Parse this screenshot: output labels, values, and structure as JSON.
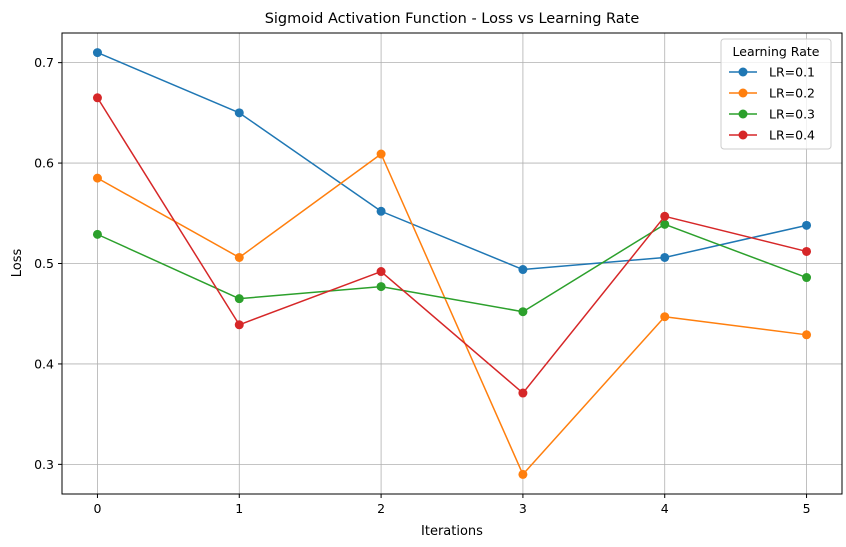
{
  "chart_data": {
    "type": "line",
    "title": "Sigmoid Activation Function - Loss vs Learning Rate",
    "xlabel": "Iterations",
    "ylabel": "Loss",
    "x": [
      0,
      1,
      2,
      3,
      4,
      5
    ],
    "x_ticks": [
      "0",
      "1",
      "2",
      "3",
      "4",
      "5"
    ],
    "y_ticks": [
      "0.3",
      "0.4",
      "0.5",
      "0.6",
      "0.7"
    ],
    "xlim": [
      -0.25,
      5.25
    ],
    "ylim": [
      0.2705,
      0.7295
    ],
    "grid": true,
    "legend": {
      "title": "Learning Rate",
      "placement": "top-right"
    },
    "series": [
      {
        "name": "LR=0.1",
        "color": "#1f77b4",
        "values": [
          0.71,
          0.65,
          0.552,
          0.494,
          0.506,
          0.538
        ]
      },
      {
        "name": "LR=0.2",
        "color": "#ff7f0e",
        "values": [
          0.585,
          0.506,
          0.609,
          0.29,
          0.447,
          0.429
        ]
      },
      {
        "name": "LR=0.3",
        "color": "#2ca02c",
        "values": [
          0.529,
          0.465,
          0.477,
          0.452,
          0.539,
          0.486
        ]
      },
      {
        "name": "LR=0.4",
        "color": "#d62728",
        "values": [
          0.665,
          0.439,
          0.492,
          0.371,
          0.547,
          0.512
        ]
      }
    ]
  }
}
